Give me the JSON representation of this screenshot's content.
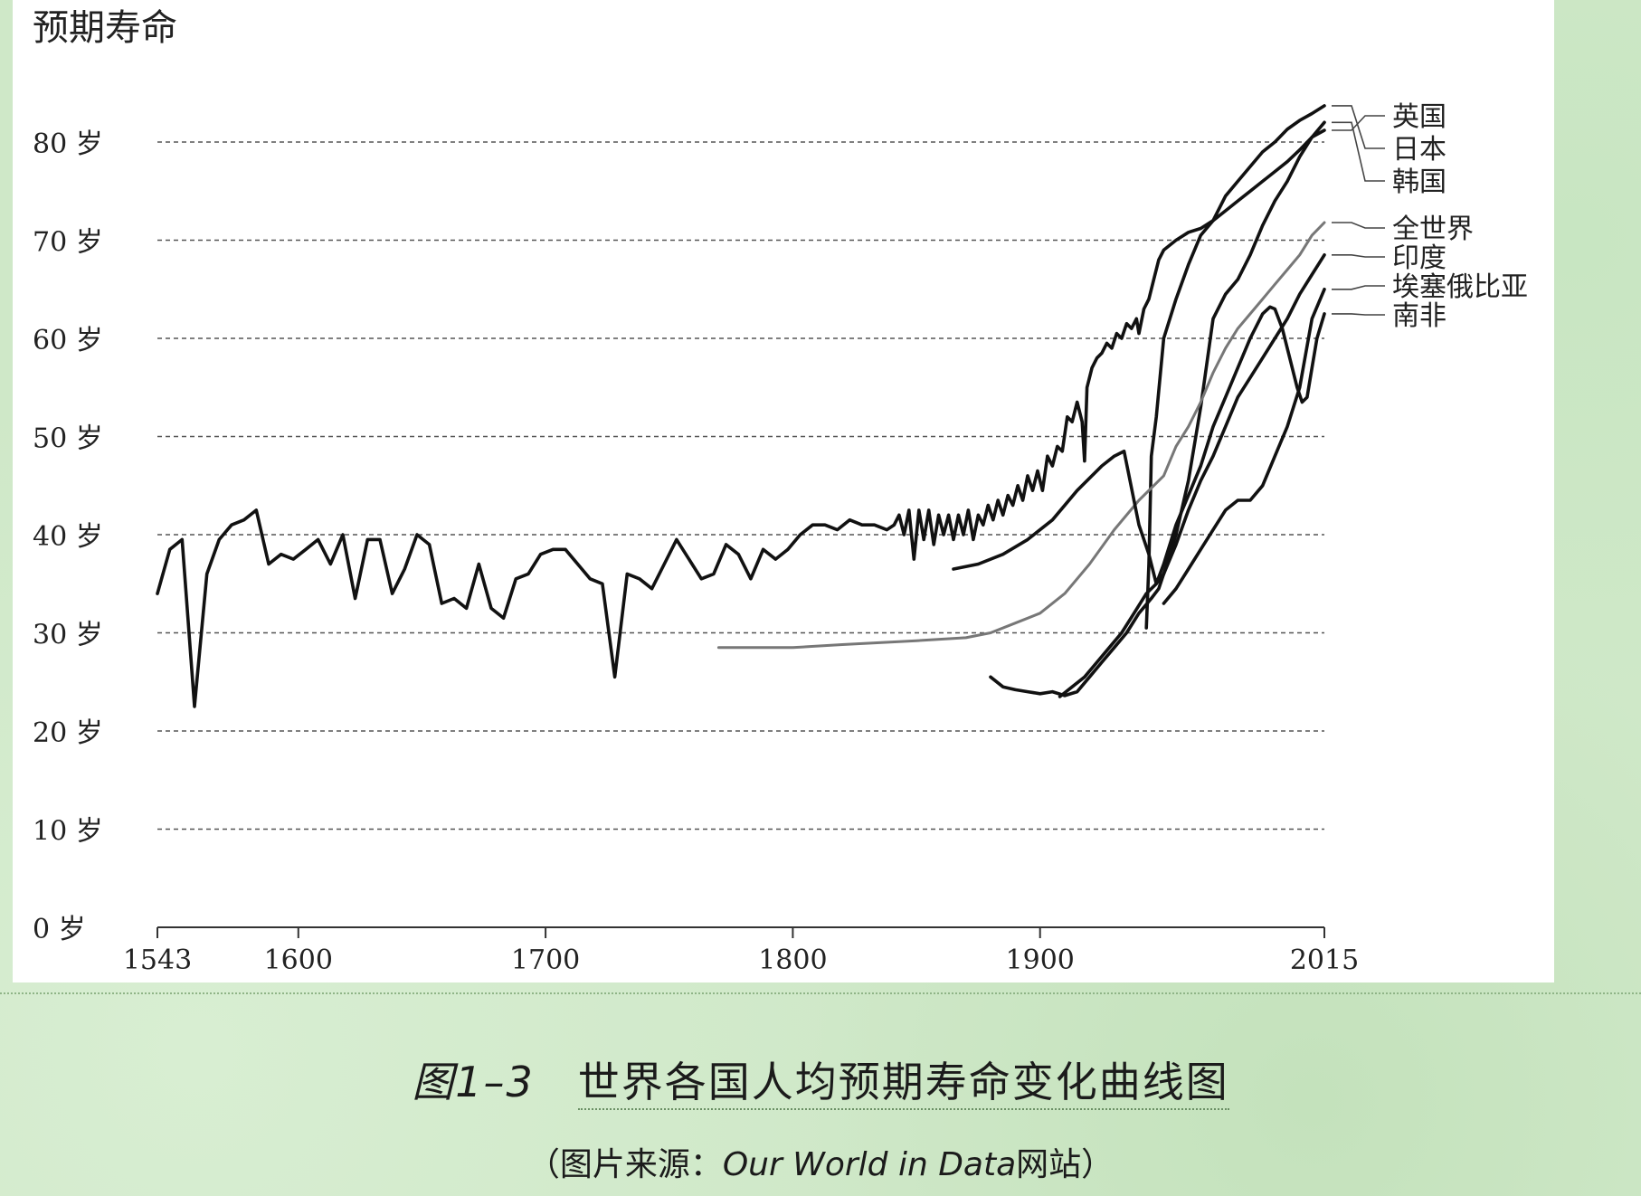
{
  "chart_data": {
    "type": "line",
    "ylabel": "预期寿命",
    "y_unit": "岁",
    "ylim": [
      0,
      85
    ],
    "xlim": [
      1543,
      2015
    ],
    "xticks": [
      1543,
      1600,
      1700,
      1800,
      1900,
      2015
    ],
    "yticks": [
      0,
      10,
      20,
      30,
      40,
      50,
      60,
      70,
      80
    ],
    "grid": "horizontal dashed",
    "legend": "right",
    "series": [
      {
        "name": "英国",
        "color": "#111111",
        "points": [
          [
            1543,
            34
          ],
          [
            1548,
            38.5
          ],
          [
            1553,
            39.5
          ],
          [
            1558,
            22.5
          ],
          [
            1563,
            36
          ],
          [
            1568,
            39.5
          ],
          [
            1573,
            41
          ],
          [
            1578,
            41.5
          ],
          [
            1583,
            42.5
          ],
          [
            1588,
            37
          ],
          [
            1593,
            38
          ],
          [
            1598,
            37.5
          ],
          [
            1603,
            38.5
          ],
          [
            1608,
            39.5
          ],
          [
            1613,
            37
          ],
          [
            1618,
            40
          ],
          [
            1623,
            33.5
          ],
          [
            1628,
            39.5
          ],
          [
            1633,
            39.5
          ],
          [
            1638,
            34
          ],
          [
            1643,
            36.5
          ],
          [
            1648,
            40
          ],
          [
            1653,
            39
          ],
          [
            1658,
            33
          ],
          [
            1663,
            33.5
          ],
          [
            1668,
            32.5
          ],
          [
            1673,
            37
          ],
          [
            1678,
            32.5
          ],
          [
            1683,
            31.5
          ],
          [
            1688,
            35.5
          ],
          [
            1693,
            36
          ],
          [
            1698,
            38
          ],
          [
            1703,
            38.5
          ],
          [
            1708,
            38.5
          ],
          [
            1713,
            37
          ],
          [
            1718,
            35.5
          ],
          [
            1723,
            35
          ],
          [
            1728,
            25.5
          ],
          [
            1733,
            36
          ],
          [
            1738,
            35.5
          ],
          [
            1743,
            34.5
          ],
          [
            1748,
            37
          ],
          [
            1753,
            39.5
          ],
          [
            1758,
            37.5
          ],
          [
            1763,
            35.5
          ],
          [
            1768,
            36
          ],
          [
            1773,
            39
          ],
          [
            1778,
            38
          ],
          [
            1783,
            35.5
          ],
          [
            1788,
            38.5
          ],
          [
            1793,
            37.5
          ],
          [
            1798,
            38.5
          ],
          [
            1803,
            40
          ],
          [
            1808,
            41
          ],
          [
            1813,
            41
          ],
          [
            1818,
            40.5
          ],
          [
            1823,
            41.5
          ],
          [
            1828,
            41
          ],
          [
            1833,
            41
          ],
          [
            1838,
            40.5
          ],
          [
            1841,
            41
          ],
          [
            1843,
            42
          ],
          [
            1845,
            40
          ],
          [
            1847,
            42.5
          ],
          [
            1849,
            37.5
          ],
          [
            1851,
            42.5
          ],
          [
            1853,
            39.5
          ],
          [
            1855,
            42.5
          ],
          [
            1857,
            39
          ],
          [
            1859,
            42
          ],
          [
            1861,
            40
          ],
          [
            1863,
            42
          ],
          [
            1865,
            39.5
          ],
          [
            1867,
            42
          ],
          [
            1869,
            40
          ],
          [
            1871,
            42.5
          ],
          [
            1873,
            39.5
          ],
          [
            1875,
            42
          ],
          [
            1877,
            41
          ],
          [
            1879,
            43
          ],
          [
            1881,
            41.5
          ],
          [
            1883,
            43.5
          ],
          [
            1885,
            42
          ],
          [
            1887,
            44
          ],
          [
            1889,
            43
          ],
          [
            1891,
            45
          ],
          [
            1893,
            43.5
          ],
          [
            1895,
            46
          ],
          [
            1897,
            44.5
          ],
          [
            1899,
            46.5
          ],
          [
            1901,
            44.5
          ],
          [
            1903,
            48
          ],
          [
            1905,
            47
          ],
          [
            1907,
            49
          ],
          [
            1909,
            48.5
          ],
          [
            1911,
            52
          ],
          [
            1913,
            51.5
          ],
          [
            1915,
            53.5
          ],
          [
            1917,
            51.5
          ],
          [
            1918,
            47.5
          ],
          [
            1919,
            55
          ],
          [
            1921,
            57
          ],
          [
            1923,
            58
          ],
          [
            1925,
            58.5
          ],
          [
            1927,
            59.5
          ],
          [
            1929,
            59
          ],
          [
            1931,
            60.5
          ],
          [
            1933,
            60
          ],
          [
            1935,
            61.5
          ],
          [
            1937,
            61
          ],
          [
            1939,
            62
          ],
          [
            1940,
            60.5
          ],
          [
            1942,
            63
          ],
          [
            1944,
            64
          ],
          [
            1946,
            66
          ],
          [
            1948,
            68
          ],
          [
            1950,
            69
          ],
          [
            1955,
            70
          ],
          [
            1960,
            70.8
          ],
          [
            1965,
            71.2
          ],
          [
            1970,
            72
          ],
          [
            1975,
            73
          ],
          [
            1980,
            74
          ],
          [
            1985,
            75
          ],
          [
            1990,
            76
          ],
          [
            1995,
            77
          ],
          [
            2000,
            78
          ],
          [
            2005,
            79.2
          ],
          [
            2010,
            80.5
          ],
          [
            2015,
            81.2
          ]
        ]
      },
      {
        "name": "日本",
        "color": "#111111",
        "points": [
          [
            1943,
            30.5
          ],
          [
            1944,
            37
          ],
          [
            1945,
            48
          ],
          [
            1947,
            52
          ],
          [
            1950,
            60
          ],
          [
            1955,
            64
          ],
          [
            1960,
            67.5
          ],
          [
            1965,
            70.5
          ],
          [
            1970,
            72
          ],
          [
            1975,
            74.5
          ],
          [
            1980,
            76
          ],
          [
            1985,
            77.5
          ],
          [
            1990,
            79
          ],
          [
            1995,
            80
          ],
          [
            2000,
            81.3
          ],
          [
            2005,
            82.2
          ],
          [
            2010,
            82.9
          ],
          [
            2015,
            83.7
          ]
        ]
      },
      {
        "name": "韩国",
        "color": "#111111",
        "points": [
          [
            1908,
            23.5
          ],
          [
            1913,
            24.5
          ],
          [
            1918,
            25.5
          ],
          [
            1923,
            27
          ],
          [
            1928,
            28.5
          ],
          [
            1933,
            30
          ],
          [
            1938,
            32
          ],
          [
            1943,
            34
          ],
          [
            1947,
            35
          ],
          [
            1950,
            36
          ],
          [
            1955,
            40
          ],
          [
            1960,
            45.5
          ],
          [
            1965,
            53
          ],
          [
            1970,
            62
          ],
          [
            1975,
            64.5
          ],
          [
            1980,
            66
          ],
          [
            1985,
            68.5
          ],
          [
            1990,
            71.5
          ],
          [
            1995,
            74
          ],
          [
            2000,
            76
          ],
          [
            2005,
            78.5
          ],
          [
            2010,
            80.5
          ],
          [
            2015,
            82
          ]
        ]
      },
      {
        "name": "全世界",
        "color": "#777777",
        "points": [
          [
            1770,
            28.5
          ],
          [
            1800,
            28.5
          ],
          [
            1820,
            28.8
          ],
          [
            1850,
            29.2
          ],
          [
            1870,
            29.5
          ],
          [
            1880,
            30
          ],
          [
            1890,
            31
          ],
          [
            1900,
            32
          ],
          [
            1910,
            34
          ],
          [
            1920,
            37
          ],
          [
            1930,
            40.5
          ],
          [
            1940,
            43.5
          ],
          [
            1950,
            46
          ],
          [
            1955,
            49
          ],
          [
            1960,
            51
          ],
          [
            1965,
            53.5
          ],
          [
            1970,
            56.5
          ],
          [
            1975,
            59
          ],
          [
            1980,
            61
          ],
          [
            1985,
            62.5
          ],
          [
            1990,
            64
          ],
          [
            1995,
            65.5
          ],
          [
            2000,
            67
          ],
          [
            2005,
            68.5
          ],
          [
            2010,
            70.5
          ],
          [
            2015,
            71.8
          ]
        ]
      },
      {
        "name": "印度",
        "color": "#111111",
        "points": [
          [
            1880,
            25.5
          ],
          [
            1885,
            24.5
          ],
          [
            1890,
            24.2
          ],
          [
            1895,
            24
          ],
          [
            1900,
            23.8
          ],
          [
            1905,
            24
          ],
          [
            1910,
            23.6
          ],
          [
            1915,
            24
          ],
          [
            1920,
            25.5
          ],
          [
            1925,
            27
          ],
          [
            1930,
            28.5
          ],
          [
            1935,
            30
          ],
          [
            1940,
            32
          ],
          [
            1945,
            33.5
          ],
          [
            1948,
            34.5
          ],
          [
            1950,
            36
          ],
          [
            1955,
            39
          ],
          [
            1960,
            42.5
          ],
          [
            1965,
            45.5
          ],
          [
            1970,
            48
          ],
          [
            1975,
            51
          ],
          [
            1980,
            54
          ],
          [
            1985,
            56
          ],
          [
            1990,
            58
          ],
          [
            1995,
            60
          ],
          [
            2000,
            62
          ],
          [
            2005,
            64.5
          ],
          [
            2010,
            66.5
          ],
          [
            2015,
            68.5
          ]
        ]
      },
      {
        "name": "埃塞俄比亚",
        "color": "#111111",
        "points": [
          [
            1950,
            33
          ],
          [
            1955,
            34.5
          ],
          [
            1960,
            36.5
          ],
          [
            1965,
            38.5
          ],
          [
            1970,
            40.5
          ],
          [
            1975,
            42.5
          ],
          [
            1980,
            43.5
          ],
          [
            1985,
            43.5
          ],
          [
            1990,
            45
          ],
          [
            1995,
            48
          ],
          [
            2000,
            51
          ],
          [
            2005,
            55
          ],
          [
            2010,
            62
          ],
          [
            2015,
            65
          ]
        ]
      },
      {
        "name": "南非",
        "color": "#111111",
        "points": [
          [
            1865,
            36.5
          ],
          [
            1875,
            37
          ],
          [
            1885,
            38
          ],
          [
            1895,
            39.5
          ],
          [
            1905,
            41.5
          ],
          [
            1915,
            44.5
          ],
          [
            1925,
            47
          ],
          [
            1930,
            48
          ],
          [
            1934,
            48.5
          ],
          [
            1940,
            41
          ],
          [
            1944,
            38
          ],
          [
            1947,
            35
          ],
          [
            1950,
            37
          ],
          [
            1955,
            41
          ],
          [
            1960,
            44
          ],
          [
            1965,
            47
          ],
          [
            1970,
            51
          ],
          [
            1975,
            54
          ],
          [
            1980,
            57
          ],
          [
            1985,
            60
          ],
          [
            1990,
            62.5
          ],
          [
            1993,
            63.2
          ],
          [
            1995,
            63
          ],
          [
            1998,
            61
          ],
          [
            2001,
            58
          ],
          [
            2004,
            55
          ],
          [
            2006,
            53.5
          ],
          [
            2008,
            54
          ],
          [
            2010,
            57
          ],
          [
            2012,
            60
          ],
          [
            2015,
            62.5
          ]
        ]
      }
    ]
  },
  "y_tick_labels": [
    "0 岁",
    "10 岁",
    "20 岁",
    "30 岁",
    "40 岁",
    "50 岁",
    "60 岁",
    "70 岁",
    "80 岁"
  ],
  "x_tick_labels": [
    "1543",
    "1600",
    "1700",
    "1800",
    "1900",
    "2015"
  ],
  "caption": {
    "number": "图1–3",
    "title": "世界各国人均预期寿命变化曲线图"
  },
  "source": {
    "open": "（图片来源：",
    "site": "Our World in Data",
    "suffix": "网站）"
  }
}
